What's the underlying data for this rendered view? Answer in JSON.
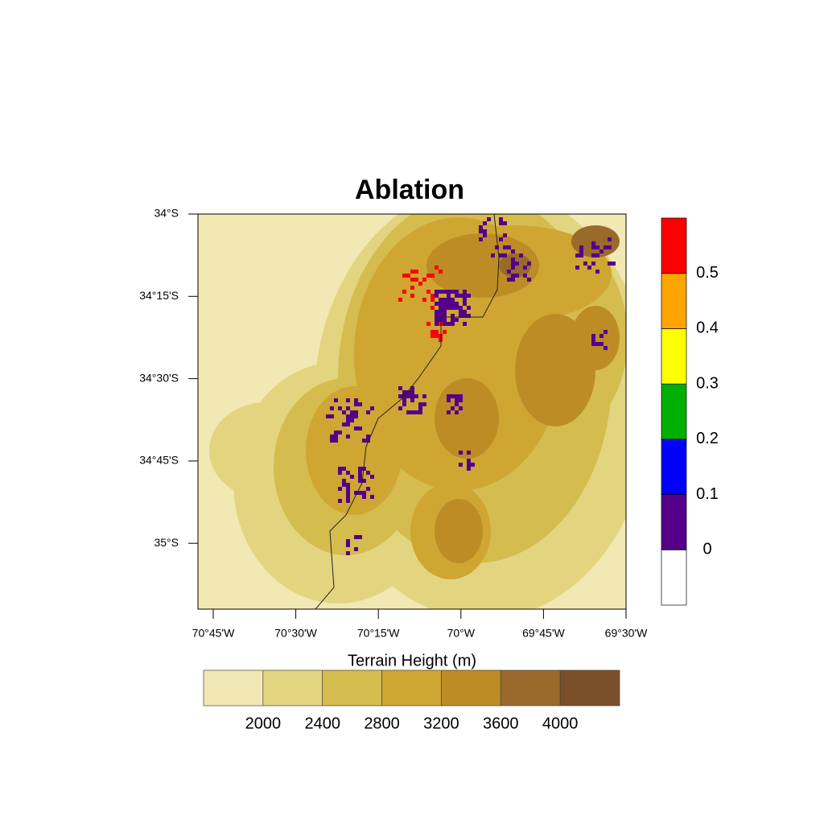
{
  "title": "Ablation",
  "map": {
    "lat_labels": [
      "34°S",
      "34°15'S",
      "34°30'S",
      "34°45'S",
      "35°S"
    ],
    "lon_labels": [
      "70°45'W",
      "70°30'W",
      "70°15'W",
      "70°W",
      "69°45'W",
      "69°30'W"
    ]
  },
  "ablation_colorbar": {
    "levels": [
      0,
      0.1,
      0.2,
      0.3,
      0.4,
      0.5
    ],
    "colors": [
      "#ffffff",
      "#55008b",
      "#0000ff",
      "#00b000",
      "#ffff00",
      "#ffa500",
      "#ff0000"
    ]
  },
  "terrain_colorbar": {
    "label": "Terrain Height (m)",
    "levels": [
      2000,
      2400,
      2800,
      3200,
      3600,
      4000
    ],
    "colors": [
      "#f2e8b4",
      "#e3d580",
      "#d4bd4e",
      "#cfa632",
      "#bd8c25",
      "#9a6a2d",
      "#7a4f29"
    ]
  }
}
